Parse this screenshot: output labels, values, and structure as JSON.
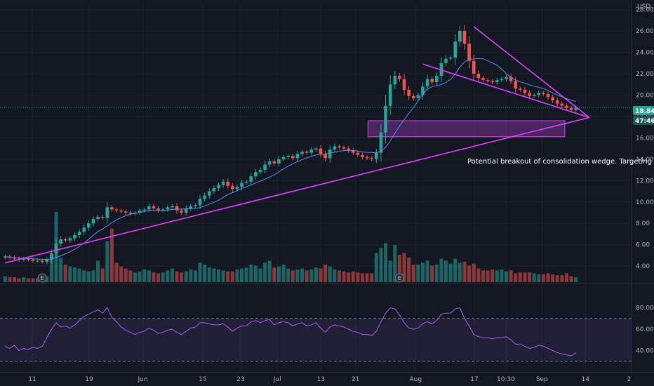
{
  "chart_data": {
    "type": "candlestick",
    "currency": "USD",
    "y_ticks": [
      "28.00",
      "26.00",
      "24.00",
      "22.00",
      "20.00",
      "18.00",
      "16.00",
      "14.00",
      "12.00",
      "10.00",
      "8.00",
      "6.00",
      "4.00"
    ],
    "rsi_ticks": [
      "80.00",
      "60.00",
      "40.00"
    ],
    "x_ticks": [
      "11",
      "19",
      "Jun",
      "15",
      "23",
      "Jul",
      "13",
      "21",
      "Aug",
      "17",
      "10:30",
      "Sep",
      "14",
      "2"
    ],
    "last_price": "18.84",
    "countdown": "47:46",
    "annotation": "Potential breakout of consolidation wedge. Targeting",
    "earnings_marker": "E",
    "ylim": [
      2.5,
      28.5
    ],
    "rsi_lim": [
      20,
      100
    ],
    "rsi_bands": [
      70,
      30
    ],
    "demand_zone": [
      16.1,
      17.6
    ],
    "support_line": [
      [
        0,
        4.3
      ],
      [
        125,
        17.9
      ]
    ],
    "wedge_upper": [
      [
        90,
        22.9
      ],
      [
        125,
        17.9
      ]
    ],
    "falling_line": [
      [
        101,
        26.4
      ],
      [
        125,
        17.9
      ]
    ],
    "colors": {
      "up": "#26a69a",
      "down": "#ef5350",
      "trend": "#e040fb",
      "zone": "#8e3ab0",
      "ma": "#5b8ff0",
      "rsi": "#b05cf0",
      "price_tag": "#26a69a"
    },
    "closes": [
      4.9,
      4.8,
      4.7,
      4.6,
      4.7,
      4.6,
      4.5,
      4.5,
      4.4,
      4.6,
      5.2,
      6.1,
      6.5,
      6.4,
      6.6,
      6.9,
      7.2,
      7.6,
      8.0,
      8.4,
      8.6,
      8.5,
      9.5,
      9.3,
      9.2,
      9.1,
      9.0,
      8.9,
      9.0,
      9.2,
      9.3,
      9.6,
      9.4,
      9.2,
      9.3,
      9.5,
      9.6,
      9.2,
      9.0,
      9.4,
      9.6,
      9.7,
      10.3,
      10.6,
      11.0,
      11.3,
      11.6,
      11.9,
      11.5,
      11.2,
      11.4,
      11.8,
      11.9,
      12.4,
      12.8,
      13.0,
      13.5,
      13.8,
      13.6,
      14.0,
      14.2,
      14.3,
      14.1,
      14.5,
      14.7,
      14.6,
      14.9,
      15.0,
      14.5,
      14.1,
      14.9,
      15.2,
      15.1,
      15.0,
      14.8,
      14.6,
      14.4,
      14.2,
      14.1,
      14.0,
      14.6,
      16.5,
      19.0,
      21.0,
      21.8,
      21.5,
      20.5,
      19.9,
      19.7,
      20.0,
      20.8,
      21.5,
      21.2,
      21.8,
      23.0,
      23.4,
      23.5,
      25.0,
      26.0,
      24.8,
      23.2,
      22.0,
      21.6,
      21.4,
      21.3,
      21.2,
      21.4,
      21.5,
      21.7,
      21.3,
      20.6,
      20.5,
      20.2,
      19.9,
      20.0,
      20.2,
      20.1,
      19.8,
      19.5,
      19.2,
      19.0,
      18.8,
      18.6,
      18.84
    ],
    "volumes": [
      6,
      5,
      5,
      4,
      5,
      4,
      4,
      4,
      5,
      6,
      28,
      72,
      25,
      18,
      16,
      15,
      14,
      12,
      11,
      12,
      22,
      14,
      42,
      55,
      20,
      16,
      14,
      12,
      10,
      11,
      13,
      12,
      10,
      9,
      10,
      12,
      14,
      11,
      10,
      11,
      13,
      12,
      20,
      18,
      15,
      14,
      13,
      12,
      11,
      11,
      13,
      14,
      15,
      18,
      17,
      14,
      20,
      22,
      15,
      16,
      18,
      14,
      12,
      13,
      14,
      12,
      13,
      15,
      14,
      18,
      16,
      13,
      12,
      11,
      10,
      11,
      10,
      9,
      9,
      9,
      30,
      35,
      40,
      22,
      38,
      28,
      30,
      25,
      18,
      18,
      20,
      22,
      17,
      18,
      24,
      22,
      19,
      24,
      20,
      21,
      17,
      19,
      14,
      12,
      12,
      13,
      12,
      13,
      11,
      12,
      9,
      10,
      10,
      10,
      9,
      8,
      8,
      9,
      8,
      7,
      7,
      9,
      6,
      5
    ],
    "rsi": [
      44,
      42,
      45,
      40,
      42,
      41,
      43,
      42,
      44,
      52,
      60,
      66,
      62,
      63,
      61,
      64,
      68,
      72,
      74,
      76,
      78,
      75,
      80,
      71,
      67,
      62,
      59,
      57,
      55,
      57,
      58,
      61,
      59,
      56,
      57,
      59,
      60,
      57,
      55,
      58,
      61,
      62,
      66,
      66,
      65,
      64,
      64,
      65,
      62,
      58,
      61,
      63,
      63,
      67,
      68,
      66,
      68,
      69,
      64,
      66,
      67,
      66,
      63,
      65,
      66,
      63,
      64,
      66,
      61,
      57,
      62,
      64,
      63,
      62,
      60,
      58,
      57,
      55,
      55,
      54,
      58,
      67,
      75,
      80,
      79,
      73,
      66,
      61,
      60,
      61,
      65,
      67,
      65,
      68,
      74,
      75,
      75,
      79,
      80,
      70,
      63,
      55,
      53,
      52,
      52,
      51,
      52,
      52,
      53,
      50,
      46,
      46,
      44,
      42,
      43,
      45,
      44,
      42,
      40,
      38,
      37,
      36,
      35,
      38
    ]
  }
}
